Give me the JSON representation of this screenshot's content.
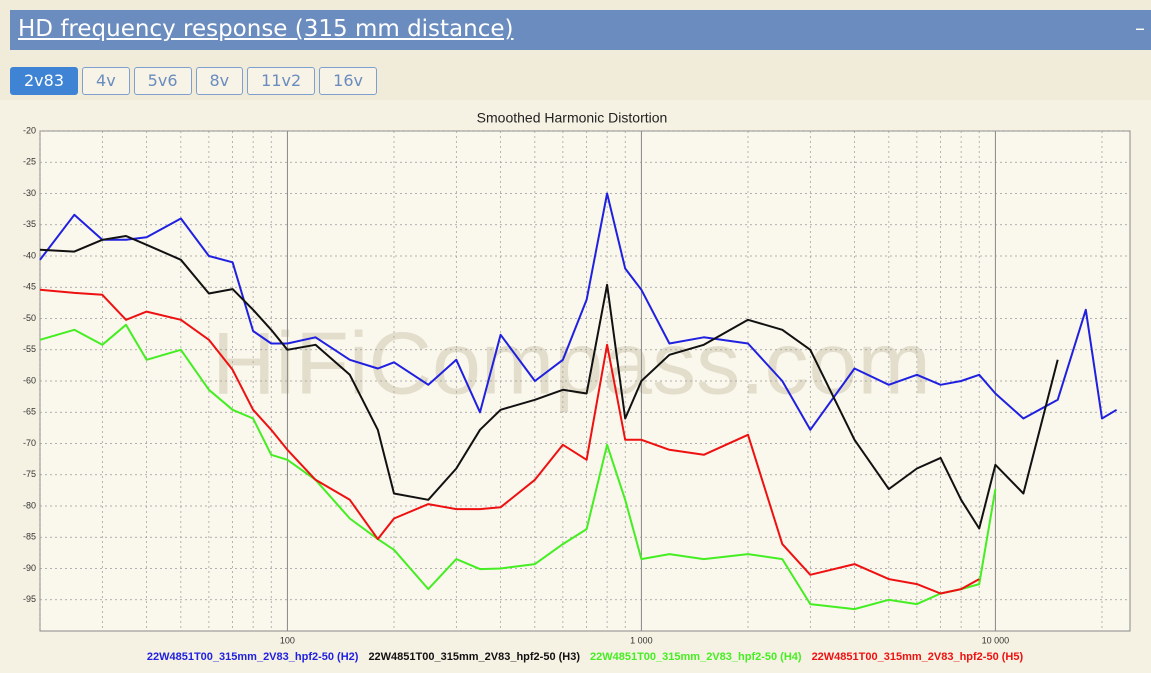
{
  "header": {
    "title": "HD frequency response (315 mm distance)",
    "toggle": "–"
  },
  "tabs": [
    "2v83",
    "4v",
    "5v6",
    "8v",
    "11v2",
    "16v"
  ],
  "chart_data": {
    "type": "line",
    "title": "Smoothed Harmonic Distortion",
    "watermark": "HiFiCompass.com",
    "log_x": true,
    "grid": true,
    "x": [
      20,
      25,
      30,
      35,
      40,
      50,
      60,
      70,
      80,
      90,
      100,
      120,
      150,
      180,
      200,
      250,
      300,
      350,
      400,
      500,
      600,
      700,
      800,
      900,
      1000,
      1200,
      1500,
      2000,
      2500,
      3000,
      4000,
      5000,
      6000,
      7000,
      8000,
      9000,
      10000,
      12000,
      15000,
      18000,
      20000,
      22000
    ],
    "xlim": [
      20,
      24000
    ],
    "xticks": [
      100,
      {
        "value": 1000,
        "label": "1 000"
      },
      {
        "value": 10000,
        "label": "10 000"
      }
    ],
    "xminorticks": [
      20,
      30,
      40,
      50,
      60,
      70,
      80,
      90,
      200,
      300,
      400,
      500,
      600,
      700,
      800,
      900,
      2000,
      3000,
      4000,
      5000,
      6000,
      7000,
      8000,
      9000,
      20000
    ],
    "ylim": [
      -100,
      -20
    ],
    "yticks": [
      -20,
      -25,
      -30,
      -35,
      -40,
      -45,
      -50,
      -55,
      -60,
      -65,
      -70,
      -75,
      -80,
      -85,
      -90,
      -95
    ],
    "series": [
      {
        "name": "22W4851T00_315mm_2V83_hpf2-50 (H2)",
        "color": "#2020e0",
        "values": [
          -40.6,
          -33.4,
          -37.4,
          -37.4,
          -37,
          -34,
          -40,
          -41,
          -52,
          -54,
          -54,
          -53,
          -56.6,
          -58,
          -57,
          -60.6,
          -56.6,
          -65,
          -52.6,
          -60,
          -56.6,
          -47,
          -30,
          -42,
          -45.4,
          -54,
          -53,
          -54,
          -60,
          -67.8,
          -58,
          -60.6,
          -59,
          -60.6,
          -60,
          -59,
          -62,
          -66,
          -63,
          -48.6,
          -66,
          -64.6
        ]
      },
      {
        "name": "22W4851T00_315mm_2V83_hpf2-50 (H3)",
        "color": "#111111",
        "values": [
          -39,
          -39.3,
          -37.4,
          -36.8,
          -38.2,
          -40.6,
          -46,
          -45.3,
          -48.6,
          -51.8,
          -55,
          -54.2,
          -59,
          -67.8,
          -78,
          -79,
          -74,
          -67.8,
          -64.6,
          -63,
          -61.4,
          -62,
          -44.6,
          -66,
          -60,
          -55.8,
          -54.2,
          -50.2,
          -51.8,
          -55,
          -69.4,
          -77.3,
          -74,
          -72.3,
          -79,
          -83.6,
          -73.4,
          -78,
          -56.6,
          null,
          null,
          null
        ]
      },
      {
        "name": "22W4851T00_315mm_2V83_hpf2-50 (H4)",
        "color": "#44ee22",
        "values": [
          -53.4,
          -51.8,
          -54.2,
          -51,
          -56.6,
          -55,
          -61.4,
          -64.6,
          -66,
          -71.8,
          -72.6,
          -75.8,
          -82,
          -85.3,
          -87,
          -93.3,
          -88.5,
          -90.1,
          -90,
          -89.3,
          -86.1,
          -83.7,
          -70.2,
          -79,
          -88.5,
          -87.7,
          -88.5,
          -87.7,
          -88.5,
          -95.7,
          -96.5,
          -95,
          -95.7,
          -94,
          -93.3,
          -92.5,
          -77.3,
          null,
          null,
          null,
          null,
          null
        ]
      },
      {
        "name": "22W4851T00_315mm_2V83_hpf2-50 (H5)",
        "color": "#ee1111",
        "values": [
          -45.4,
          -45.9,
          -46.2,
          -50.2,
          -48.9,
          -50.2,
          -53.4,
          -58.2,
          -64.6,
          -67.8,
          -71,
          -75.8,
          -79,
          -85.3,
          -82,
          -79.7,
          -80.5,
          -80.5,
          -80.2,
          -75.8,
          -70.2,
          -72.6,
          -54.2,
          -69.4,
          -69.4,
          -71,
          -71.8,
          -68.6,
          -86.1,
          -91,
          -89.3,
          -91.7,
          -92.5,
          -94,
          -93.3,
          -91.7,
          null,
          null,
          null,
          null,
          null,
          null
        ]
      }
    ]
  }
}
